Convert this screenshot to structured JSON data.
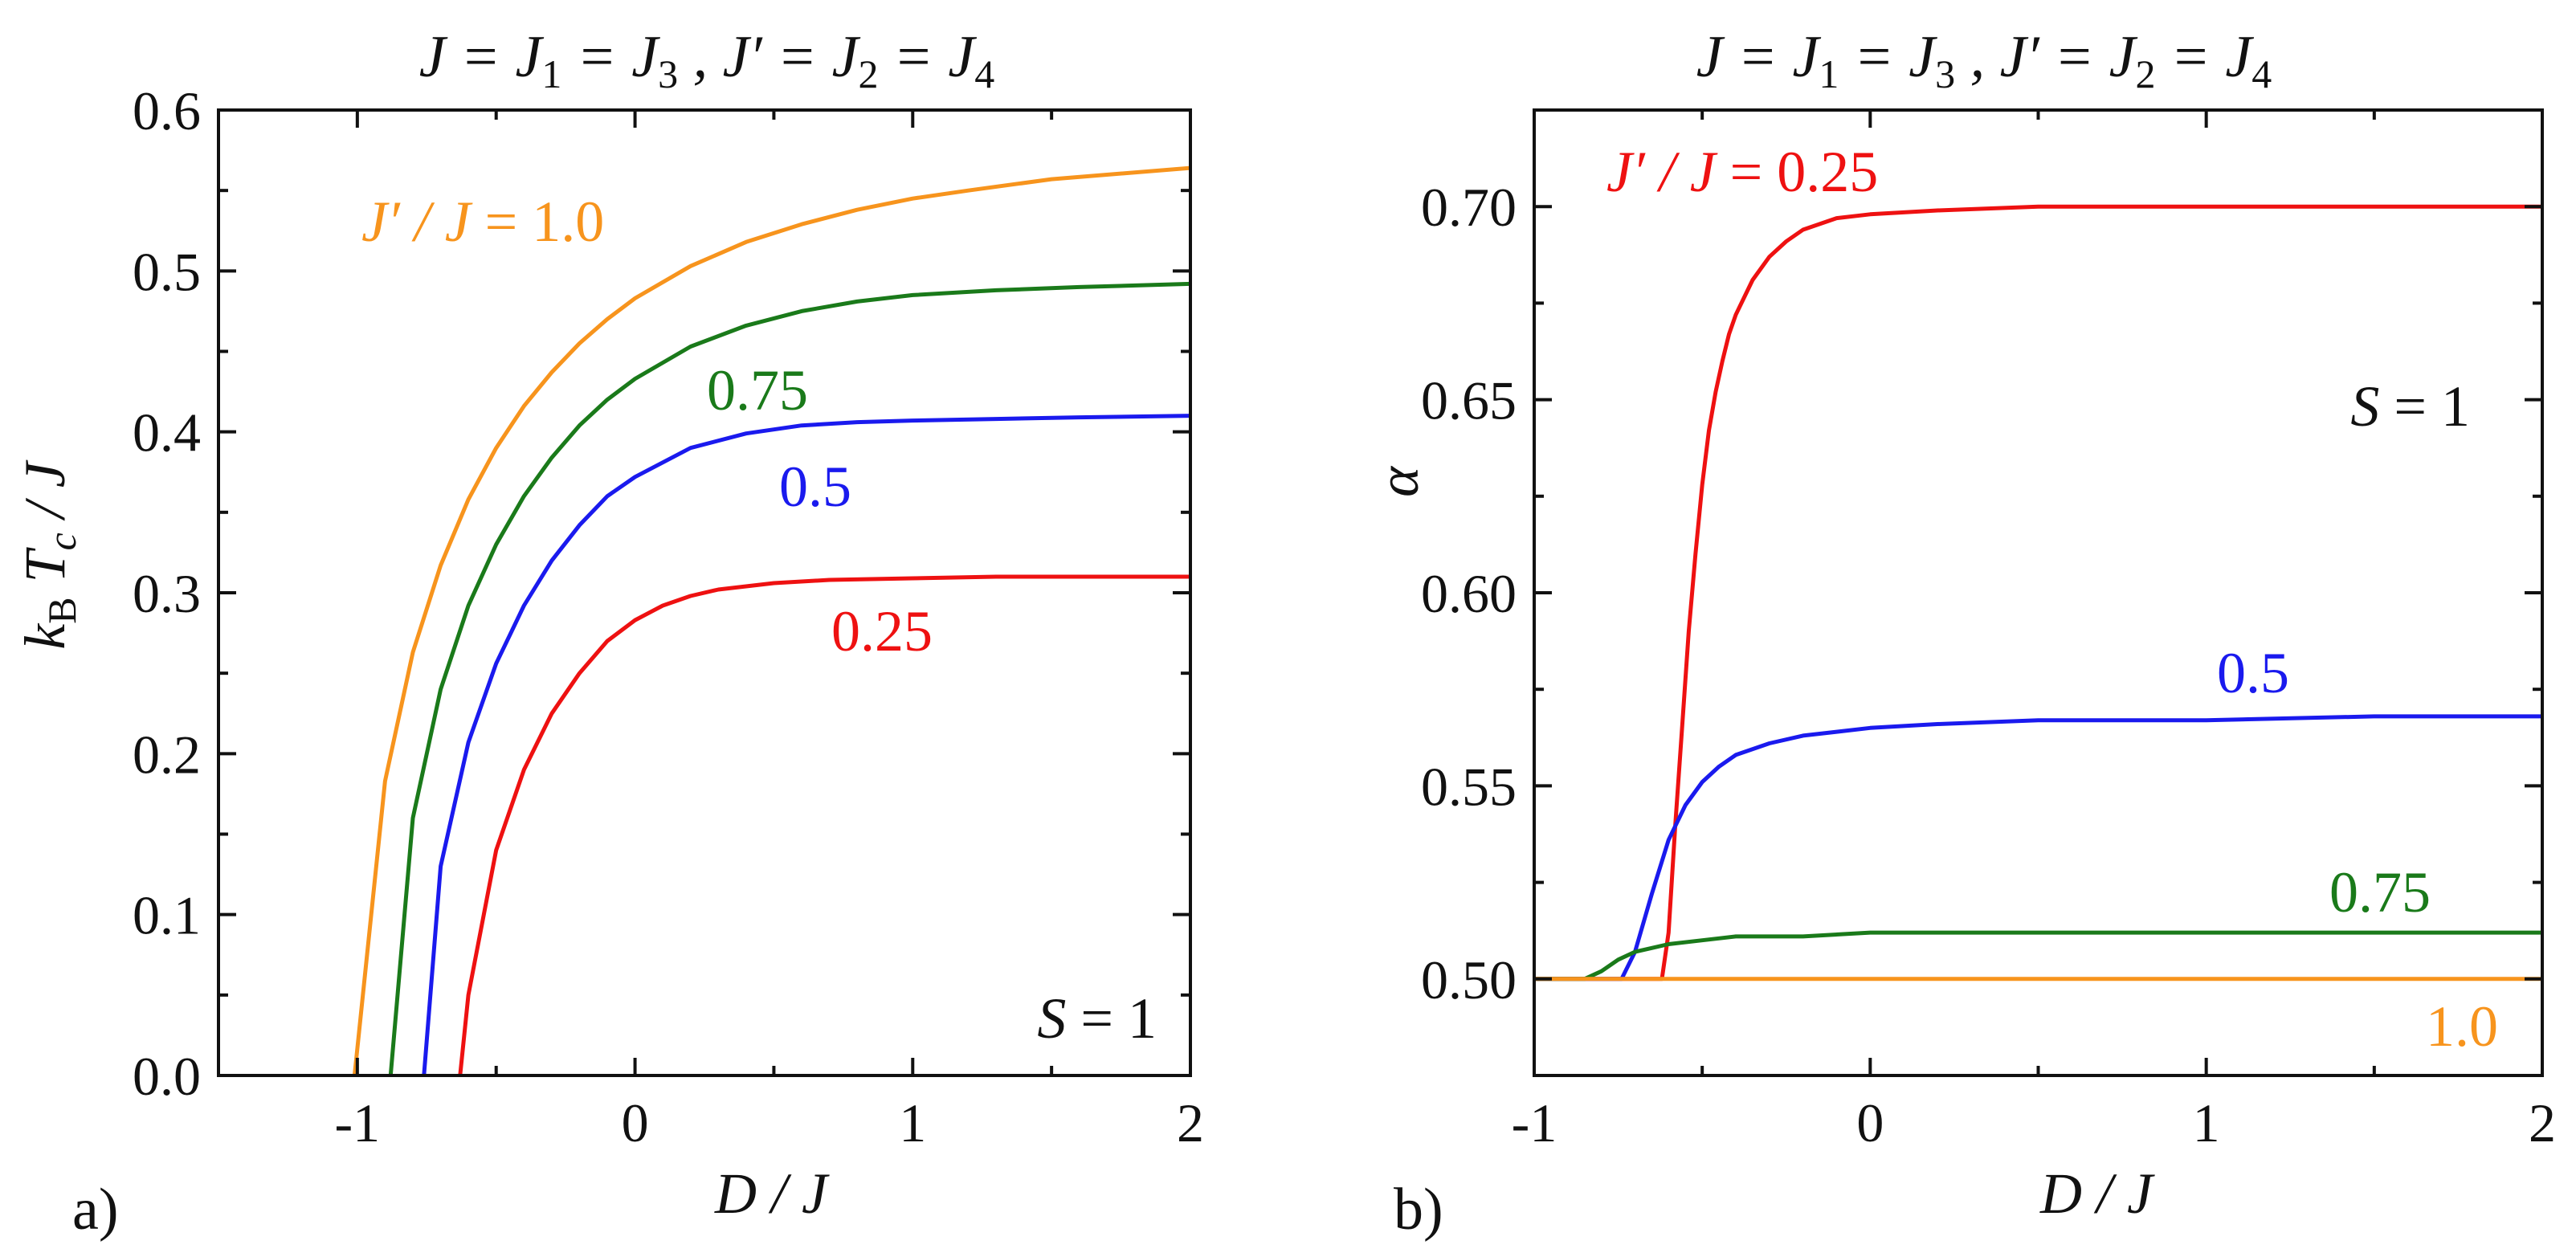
{
  "chart_data": [
    {
      "panel": "a)",
      "type": "line",
      "title": "J = J1 = J3 , J′ = J2 = J4",
      "xlabel": "D / J",
      "ylabel": "kB Tc / J",
      "xlim": [
        -1.5,
        2
      ],
      "ylim": [
        0,
        0.6
      ],
      "xticks": [
        -1,
        0,
        1,
        2
      ],
      "xtick_labels": [
        "-1",
        "0",
        "1",
        "2"
      ],
      "yticks": [
        0.0,
        0.1,
        0.2,
        0.3,
        0.4,
        0.5,
        0.6
      ],
      "ytick_labels": [
        "0.0",
        "0.1",
        "0.2",
        "0.3",
        "0.4",
        "0.5",
        "0.6"
      ],
      "annotation": "S = 1",
      "series": [
        {
          "name": "J′ / J = 1.0",
          "label": "J′ / J = 1.0",
          "color": "#f7941d",
          "x": [
            -1.01,
            -0.9,
            -0.8,
            -0.7,
            -0.6,
            -0.5,
            -0.4,
            -0.3,
            -0.2,
            -0.1,
            0.0,
            0.2,
            0.4,
            0.6,
            0.8,
            1.0,
            1.2,
            1.5,
            2.0
          ],
          "y": [
            0.0,
            0.183,
            0.263,
            0.317,
            0.358,
            0.39,
            0.416,
            0.437,
            0.455,
            0.47,
            0.483,
            0.503,
            0.518,
            0.529,
            0.538,
            0.545,
            0.55,
            0.557,
            0.564
          ]
        },
        {
          "name": "0.75",
          "label": "0.75",
          "color": "#1a7a1a",
          "x": [
            -0.88,
            -0.8,
            -0.7,
            -0.6,
            -0.5,
            -0.4,
            -0.3,
            -0.2,
            -0.1,
            0.0,
            0.2,
            0.4,
            0.6,
            0.8,
            1.0,
            1.3,
            1.6,
            2.0
          ],
          "y": [
            0.0,
            0.16,
            0.24,
            0.292,
            0.33,
            0.36,
            0.384,
            0.404,
            0.42,
            0.433,
            0.453,
            0.466,
            0.475,
            0.481,
            0.485,
            0.488,
            0.49,
            0.492
          ]
        },
        {
          "name": "0.5",
          "label": "0.5",
          "color": "#1a1aee",
          "x": [
            -0.76,
            -0.7,
            -0.6,
            -0.5,
            -0.4,
            -0.3,
            -0.2,
            -0.1,
            0.0,
            0.2,
            0.4,
            0.6,
            0.8,
            1.0,
            1.3,
            1.6,
            2.0
          ],
          "y": [
            0.0,
            0.13,
            0.207,
            0.256,
            0.292,
            0.32,
            0.342,
            0.36,
            0.372,
            0.39,
            0.399,
            0.404,
            0.406,
            0.407,
            0.408,
            0.409,
            0.41
          ]
        },
        {
          "name": "0.25",
          "label": "0.25",
          "color": "#ee1111",
          "x": [
            -0.63,
            -0.6,
            -0.5,
            -0.4,
            -0.3,
            -0.2,
            -0.1,
            0.0,
            0.1,
            0.2,
            0.3,
            0.5,
            0.7,
            1.0,
            1.3,
            1.6,
            2.0
          ],
          "y": [
            0.0,
            0.05,
            0.14,
            0.19,
            0.225,
            0.25,
            0.27,
            0.283,
            0.292,
            0.298,
            0.302,
            0.306,
            0.308,
            0.309,
            0.31,
            0.31,
            0.31
          ]
        }
      ]
    },
    {
      "panel": "b)",
      "type": "line",
      "title": "J = J1 = J3 , J′ = J2 = J4",
      "xlabel": "D / J",
      "ylabel": "α",
      "xlim": [
        -1,
        2
      ],
      "ylim": [
        0.475,
        0.725
      ],
      "xticks": [
        -1,
        0,
        1,
        2
      ],
      "xtick_labels": [
        "-1",
        "0",
        "1",
        "2"
      ],
      "yticks": [
        0.5,
        0.55,
        0.6,
        0.65,
        0.7
      ],
      "ytick_labels": [
        "0.50",
        "0.55",
        "0.60",
        "0.65",
        "0.70"
      ],
      "annotation": "S = 1",
      "series": [
        {
          "name": "J′ / J = 0.25",
          "label": "J′ / J = 0.25",
          "color": "#ee1111",
          "x": [
            -1.0,
            -0.62,
            -0.6,
            -0.58,
            -0.56,
            -0.54,
            -0.52,
            -0.5,
            -0.48,
            -0.46,
            -0.44,
            -0.42,
            -0.4,
            -0.35,
            -0.3,
            -0.25,
            -0.2,
            -0.1,
            0.0,
            0.2,
            0.5,
            1.0,
            2.0
          ],
          "y": [
            0.5,
            0.5,
            0.512,
            0.54,
            0.565,
            0.59,
            0.61,
            0.628,
            0.642,
            0.652,
            0.66,
            0.667,
            0.672,
            0.681,
            0.687,
            0.691,
            0.694,
            0.697,
            0.698,
            0.699,
            0.7,
            0.7,
            0.7
          ]
        },
        {
          "name": "0.5",
          "label": "0.5",
          "color": "#1a1aee",
          "x": [
            -1.0,
            -0.74,
            -0.7,
            -0.65,
            -0.6,
            -0.55,
            -0.5,
            -0.45,
            -0.4,
            -0.3,
            -0.2,
            -0.1,
            0.0,
            0.2,
            0.5,
            1.0,
            1.5,
            2.0
          ],
          "y": [
            0.5,
            0.5,
            0.507,
            0.522,
            0.536,
            0.545,
            0.551,
            0.555,
            0.558,
            0.561,
            0.563,
            0.564,
            0.565,
            0.566,
            0.567,
            0.567,
            0.568,
            0.568
          ]
        },
        {
          "name": "0.75",
          "label": "0.75",
          "color": "#1a7a1a",
          "x": [
            -1.0,
            -0.85,
            -0.8,
            -0.75,
            -0.7,
            -0.65,
            -0.6,
            -0.5,
            -0.4,
            -0.2,
            0.0,
            0.5,
            1.0,
            2.0
          ],
          "y": [
            0.5,
            0.5,
            0.502,
            0.505,
            0.507,
            0.508,
            0.509,
            0.51,
            0.511,
            0.511,
            0.512,
            0.512,
            0.512,
            0.512
          ]
        },
        {
          "name": "1.0",
          "label": "1.0",
          "color": "#f7941d",
          "x": [
            -1.0,
            2.0
          ],
          "y": [
            0.5,
            0.5
          ]
        }
      ]
    }
  ]
}
